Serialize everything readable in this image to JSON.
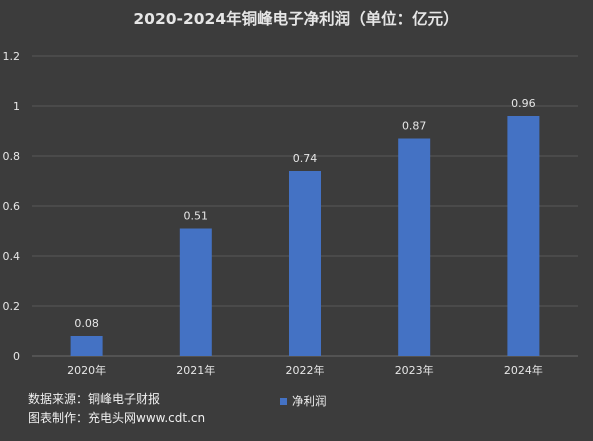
{
  "colors": {
    "background": "#3c3c3c",
    "bar": "#4472c4",
    "text": "#e6e6e6",
    "gridline": "#595959"
  },
  "chart_data": {
    "type": "bar",
    "title": "2020-2024年铜峰电子净利润（单位：亿元）",
    "categories": [
      "2020年",
      "2021年",
      "2022年",
      "2023年",
      "2024年"
    ],
    "series": [
      {
        "name": "净利润",
        "values": [
          0.08,
          0.51,
          0.74,
          0.87,
          0.96
        ]
      }
    ],
    "data_labels": [
      "0.08",
      "0.51",
      "0.74",
      "0.87",
      "0.96"
    ],
    "yticks": [
      "0",
      "0.2",
      "0.4",
      "0.6",
      "0.8",
      "1",
      "1.2"
    ],
    "ylim": [
      0,
      1.2
    ],
    "grid": true,
    "legend_position": "bottom"
  },
  "footer": {
    "source": "数据来源：铜峰电子财报",
    "credit": "图表制作：充电头网www.cdt.cn"
  }
}
